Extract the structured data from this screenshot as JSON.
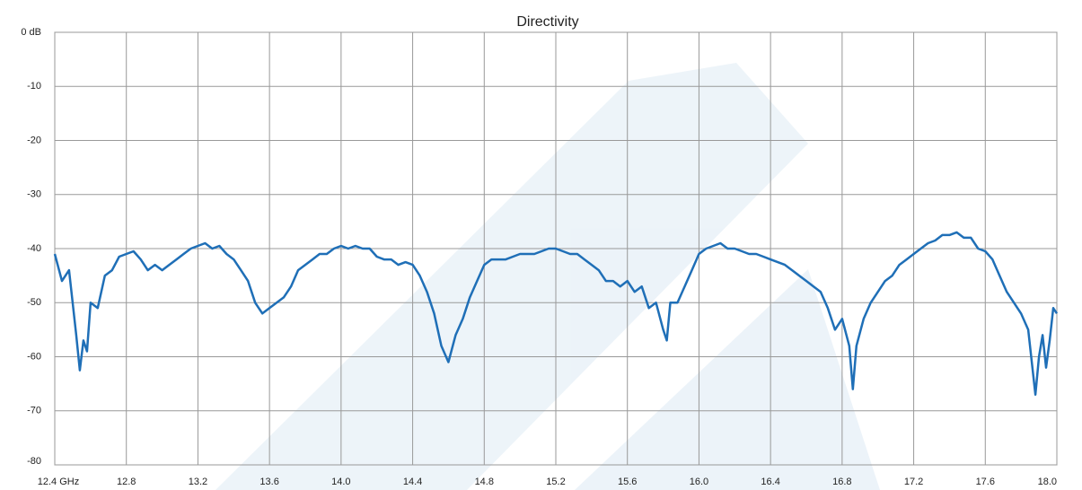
{
  "chart_data": {
    "type": "line",
    "title": "Directivity",
    "x": [
      12.4,
      12.44,
      12.48,
      12.52,
      12.54,
      12.56,
      12.58,
      12.6,
      12.64,
      12.68,
      12.72,
      12.76,
      12.8,
      12.84,
      12.88,
      12.92,
      12.96,
      13.0,
      13.04,
      13.08,
      13.12,
      13.16,
      13.2,
      13.24,
      13.28,
      13.32,
      13.36,
      13.4,
      13.44,
      13.48,
      13.52,
      13.56,
      13.6,
      13.64,
      13.68,
      13.72,
      13.76,
      13.8,
      13.84,
      13.88,
      13.92,
      13.96,
      14.0,
      14.04,
      14.08,
      14.12,
      14.16,
      14.2,
      14.24,
      14.28,
      14.32,
      14.36,
      14.4,
      14.44,
      14.48,
      14.52,
      14.56,
      14.6,
      14.64,
      14.68,
      14.72,
      14.76,
      14.8,
      14.84,
      14.88,
      14.92,
      14.96,
      15.0,
      15.04,
      15.08,
      15.12,
      15.16,
      15.2,
      15.24,
      15.28,
      15.32,
      15.36,
      15.4,
      15.44,
      15.48,
      15.52,
      15.56,
      15.6,
      15.64,
      15.68,
      15.72,
      15.76,
      15.8,
      15.82,
      15.84,
      15.88,
      15.92,
      15.96,
      16.0,
      16.04,
      16.08,
      16.12,
      16.16,
      16.2,
      16.24,
      16.28,
      16.32,
      16.36,
      16.4,
      16.44,
      16.48,
      16.52,
      16.56,
      16.6,
      16.64,
      16.68,
      16.72,
      16.76,
      16.8,
      16.84,
      16.86,
      16.88,
      16.92,
      16.96,
      17.0,
      17.04,
      17.08,
      17.12,
      17.16,
      17.2,
      17.24,
      17.28,
      17.32,
      17.36,
      17.4,
      17.44,
      17.48,
      17.52,
      17.56,
      17.6,
      17.64,
      17.68,
      17.72,
      17.76,
      17.8,
      17.84,
      17.88,
      17.9,
      17.92,
      17.94,
      17.96,
      17.98,
      18.0
    ],
    "series": [
      {
        "color": "#1f6fb7",
        "values": [
          -41,
          -46,
          -44,
          -56,
          -62.5,
          -57,
          -59,
          -50,
          -51,
          -45,
          -44,
          -41.5,
          -41,
          -40.5,
          -42,
          -44,
          -43,
          -44,
          -43,
          -42,
          -41,
          -40,
          -39.5,
          -39,
          -40,
          -39.5,
          -41,
          -42,
          -44,
          -46,
          -50,
          -52,
          -51,
          -50,
          -49,
          -47,
          -44,
          -43,
          -42,
          -41,
          -41,
          -40,
          -39.5,
          -40,
          -39.5,
          -40,
          -40,
          -41.5,
          -42,
          -42,
          -43,
          -42.5,
          -43,
          -45,
          -48,
          -52,
          -58,
          -61,
          -56,
          -53,
          -49,
          -46,
          -43,
          -42,
          -42,
          -42,
          -41.5,
          -41,
          -41,
          -41,
          -40.5,
          -40,
          -40,
          -40.5,
          -41,
          -41,
          -42,
          -43,
          -44,
          -46,
          -46,
          -47,
          -46,
          -48,
          -47,
          -51,
          -50,
          -55,
          -57,
          -50,
          -50,
          -47,
          -44,
          -41,
          -40,
          -39.5,
          -39,
          -40,
          -40,
          -40.5,
          -41,
          -41,
          -41.5,
          -42,
          -42.5,
          -43,
          -44,
          -45,
          -46,
          -47,
          -48,
          -51,
          -55,
          -53,
          -58,
          -66,
          -58,
          -53,
          -50,
          -48,
          -46,
          -45,
          -43,
          -42,
          -41,
          -40,
          -39,
          -38.5,
          -37.5,
          -37.5,
          -37,
          -38,
          -38,
          -40,
          -40.5,
          -42,
          -45,
          -48,
          -50,
          -52,
          -55,
          -67,
          -60,
          -56,
          -62,
          -57,
          -51,
          -52
        ]
      }
    ],
    "xlim": [
      12.4,
      18.0
    ],
    "xticks": [
      {
        "value": 12.4,
        "label": "12.4 GHz"
      },
      12.8,
      13.2,
      13.6,
      {
        "value": 14,
        "label": "14.0"
      },
      14.4,
      14.8,
      15.2,
      15.6,
      {
        "value": 16,
        "label": "16.0"
      },
      16.4,
      16.8,
      17.2,
      17.6,
      {
        "value": 18,
        "label": "18.0"
      }
    ],
    "ylim": [
      -80,
      0
    ],
    "yticks": [
      -80,
      -70,
      -60,
      -50,
      -40,
      -30,
      -20,
      -10,
      {
        "value": 0,
        "label": "0 dB"
      }
    ],
    "grid": true
  }
}
